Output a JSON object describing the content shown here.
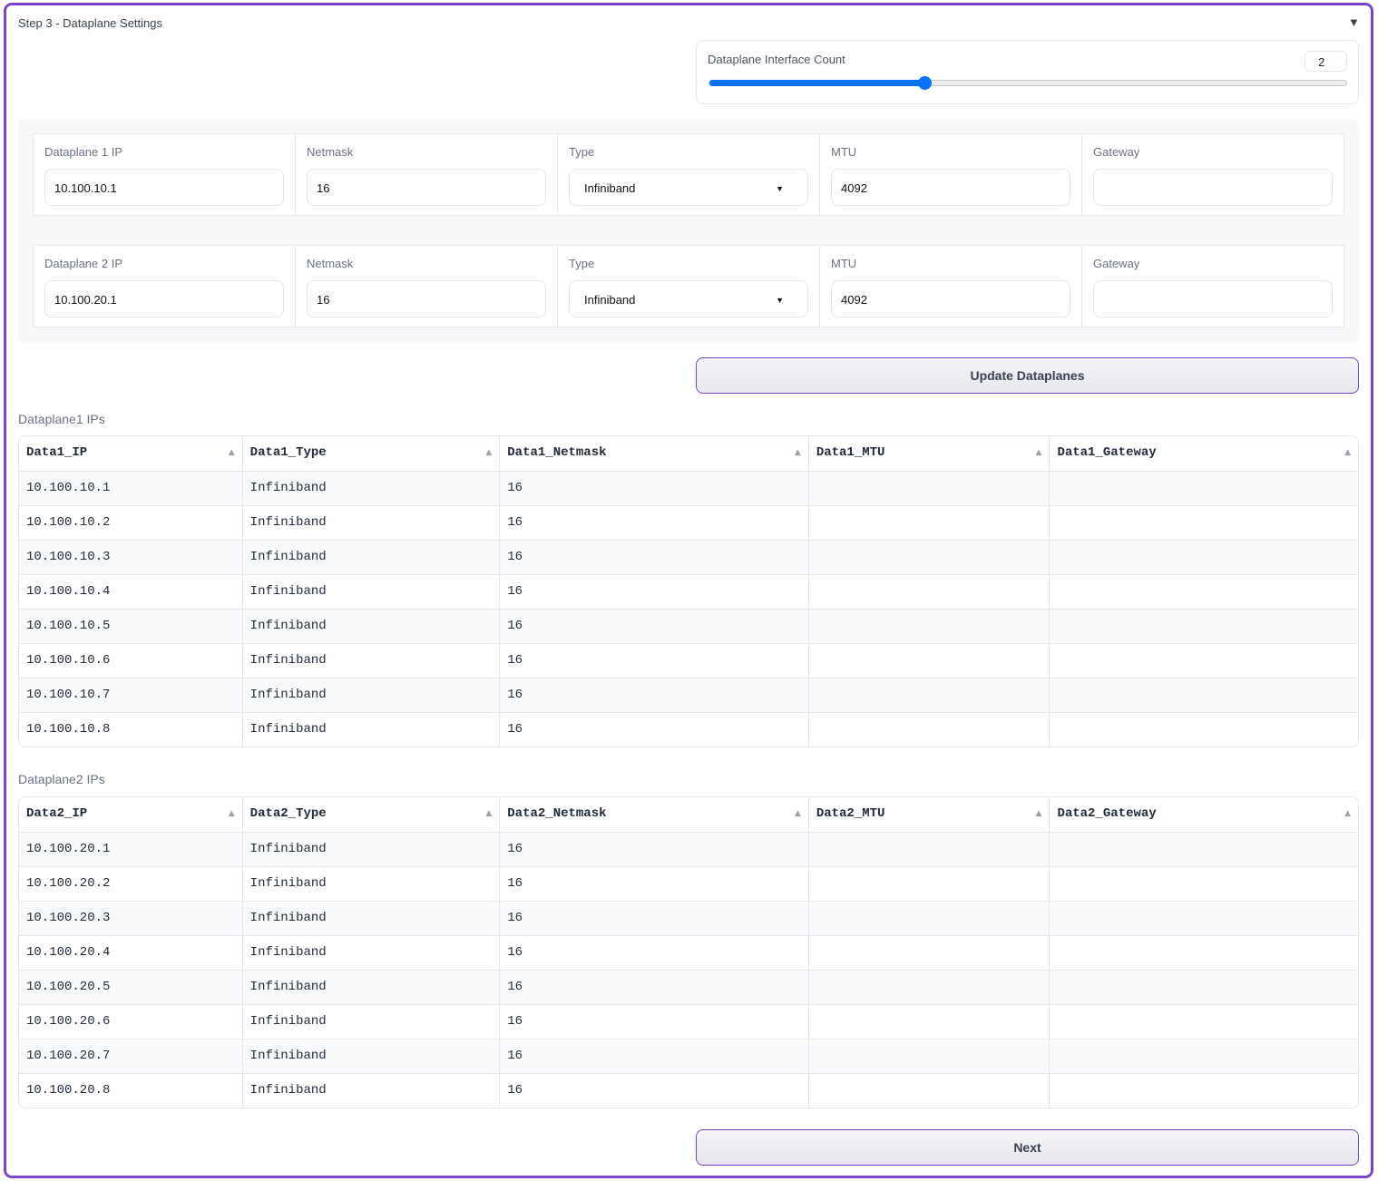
{
  "title": "Step 3 - Dataplane Settings",
  "collapse_icon": "triangle-down",
  "accent_color": "#7b45c8",
  "slider": {
    "label": "Dataplane Interface Count",
    "value": "2",
    "fill_fraction": 0.337,
    "color": "#0a72f5"
  },
  "dataplanes": [
    {
      "ip_label": "Dataplane 1 IP",
      "ip": "10.100.10.1",
      "netmask_label": "Netmask",
      "netmask": "16",
      "type_label": "Type",
      "type": "Infiniband",
      "mtu_label": "MTU",
      "mtu": "4092",
      "gateway_label": "Gateway",
      "gateway": ""
    },
    {
      "ip_label": "Dataplane 2 IP",
      "ip": "10.100.20.1",
      "netmask_label": "Netmask",
      "netmask": "16",
      "type_label": "Type",
      "type": "Infiniband",
      "mtu_label": "MTU",
      "mtu": "4092",
      "gateway_label": "Gateway",
      "gateway": ""
    }
  ],
  "update_button": "Update Dataplanes",
  "tables": [
    {
      "label": "Dataplane1 IPs",
      "columns": [
        "Data1_IP",
        "Data1_Type",
        "Data1_Netmask",
        "Data1_MTU",
        "Data1_Gateway"
      ],
      "rows": [
        [
          "10.100.10.1",
          "Infiniband",
          "16",
          "",
          ""
        ],
        [
          "10.100.10.2",
          "Infiniband",
          "16",
          "",
          ""
        ],
        [
          "10.100.10.3",
          "Infiniband",
          "16",
          "",
          ""
        ],
        [
          "10.100.10.4",
          "Infiniband",
          "16",
          "",
          ""
        ],
        [
          "10.100.10.5",
          "Infiniband",
          "16",
          "",
          ""
        ],
        [
          "10.100.10.6",
          "Infiniband",
          "16",
          "",
          ""
        ],
        [
          "10.100.10.7",
          "Infiniband",
          "16",
          "",
          ""
        ],
        [
          "10.100.10.8",
          "Infiniband",
          "16",
          "",
          ""
        ]
      ]
    },
    {
      "label": "Dataplane2 IPs",
      "columns": [
        "Data2_IP",
        "Data2_Type",
        "Data2_Netmask",
        "Data2_MTU",
        "Data2_Gateway"
      ],
      "rows": [
        [
          "10.100.20.1",
          "Infiniband",
          "16",
          "",
          ""
        ],
        [
          "10.100.20.2",
          "Infiniband",
          "16",
          "",
          ""
        ],
        [
          "10.100.20.3",
          "Infiniband",
          "16",
          "",
          ""
        ],
        [
          "10.100.20.4",
          "Infiniband",
          "16",
          "",
          ""
        ],
        [
          "10.100.20.5",
          "Infiniband",
          "16",
          "",
          ""
        ],
        [
          "10.100.20.6",
          "Infiniband",
          "16",
          "",
          ""
        ],
        [
          "10.100.20.7",
          "Infiniband",
          "16",
          "",
          ""
        ],
        [
          "10.100.20.8",
          "Infiniband",
          "16",
          "",
          ""
        ]
      ]
    }
  ],
  "next_button": "Next"
}
